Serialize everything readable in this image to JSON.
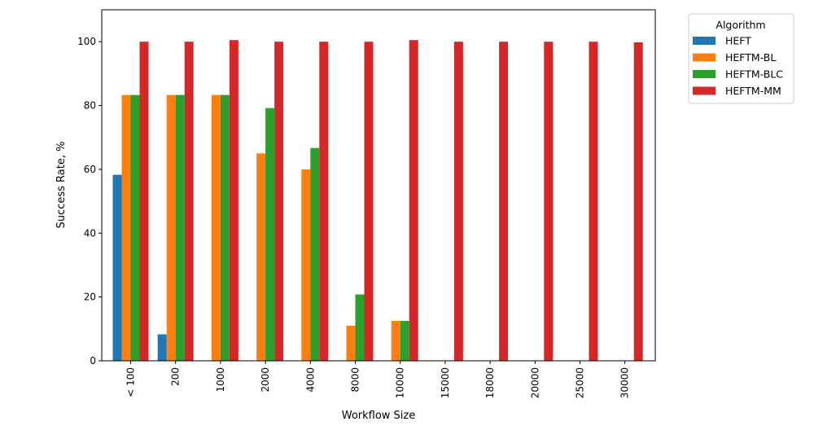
{
  "chart_data": {
    "type": "bar",
    "categories": [
      "< 100",
      "200",
      "1000",
      "2000",
      "4000",
      "8000",
      "10000",
      "15000",
      "18000",
      "20000",
      "25000",
      "30000"
    ],
    "series": [
      {
        "name": "HEFT",
        "color": "#1f77b4",
        "values": [
          58.3,
          8.3,
          0,
          0,
          0,
          0,
          0,
          0,
          0,
          0,
          0,
          0
        ]
      },
      {
        "name": "HEFTM-BL",
        "color": "#ff7f0e",
        "values": [
          83.3,
          83.3,
          83.3,
          65.0,
          60.0,
          11.0,
          12.5,
          0,
          0,
          0,
          0,
          0
        ]
      },
      {
        "name": "HEFTM-BLC",
        "color": "#2ca02c",
        "values": [
          83.3,
          83.3,
          83.3,
          79.2,
          66.7,
          20.8,
          12.5,
          0,
          0,
          0,
          0,
          0
        ]
      },
      {
        "name": "HEFTM-MM",
        "color": "#d62728",
        "values": [
          100,
          100,
          100.5,
          100,
          100,
          100,
          100.5,
          100,
          100,
          100,
          100,
          99.8
        ]
      }
    ],
    "title": "",
    "xlabel": "Workflow Size",
    "ylabel": "Success Rate, %",
    "ylim": [
      0,
      110
    ],
    "yticks": [
      0,
      20,
      40,
      60,
      80,
      100
    ],
    "grid": false,
    "legend": {
      "title": "Algorithm",
      "placement": "outside-top-right"
    }
  }
}
